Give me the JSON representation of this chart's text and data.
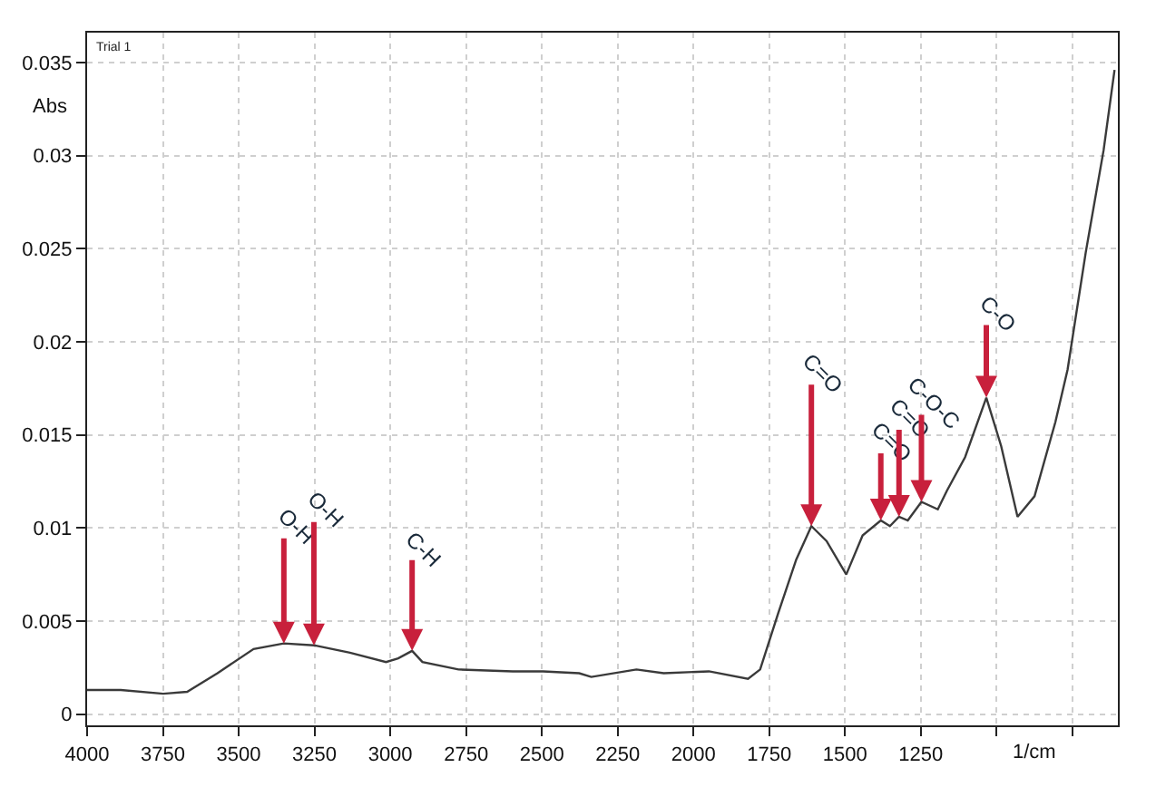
{
  "chart_data": {
    "type": "line",
    "title": "Trial 1",
    "xlabel": "1/cm",
    "ylabel": "Abs",
    "x": [
      4000,
      3889,
      3749,
      3670,
      3570,
      3451,
      3351,
      3252,
      3133,
      3014,
      2974,
      2928,
      2894,
      2775,
      2596,
      2496,
      2377,
      2337,
      2188,
      2098,
      1949,
      1820,
      1780,
      1721,
      1661,
      1611,
      1561,
      1496,
      1442,
      1382,
      1352,
      1322,
      1293,
      1248,
      1194,
      1164,
      1104,
      1034,
      985,
      931,
      875,
      806,
      766,
      706,
      647,
      611
    ],
    "series": [
      {
        "color": "#3a3a3a",
        "values": [
          0.0013,
          0.0013,
          0.0011,
          0.0012,
          0.0022,
          0.0035,
          0.0038,
          0.0037,
          0.0033,
          0.0028,
          0.003,
          0.0034,
          0.0028,
          0.0024,
          0.0023,
          0.0023,
          0.0022,
          0.002,
          0.0024,
          0.0022,
          0.0023,
          0.0019,
          0.0024,
          0.0054,
          0.0083,
          0.0101,
          0.0093,
          0.0075,
          0.0096,
          0.0104,
          0.0101,
          0.0106,
          0.0104,
          0.0114,
          0.011,
          0.012,
          0.0138,
          0.017,
          0.0144,
          0.0106,
          0.0117,
          0.0157,
          0.0185,
          0.0248,
          0.0303,
          0.0346
        ]
      }
    ],
    "xlim": [
      4000,
      600
    ],
    "xticks": [
      4000,
      3750,
      3500,
      3250,
      3000,
      2750,
      2500,
      2250,
      2000,
      1750,
      1500,
      1250,
      {
        "value": 1000,
        "label": null
      },
      {
        "value": 750,
        "label": null
      }
    ],
    "ylim": [
      -0.0006,
      0.0366
    ],
    "yticks": [
      0,
      0.005,
      0.01,
      0.015,
      0.02,
      0.025,
      0.03,
      0.035
    ],
    "grid": true,
    "marker": "none",
    "line_style": "solid",
    "annotations": [
      {
        "text": "O-H",
        "x": 3351,
        "y": 0.0038
      },
      {
        "text": "O-H",
        "x": 3252,
        "y": 0.0037
      },
      {
        "text": "C-H",
        "x": 2928,
        "y": 0.0034
      },
      {
        "text": "C=O",
        "x": 1611,
        "y": 0.0101
      },
      {
        "text": "C=O",
        "x": 1382,
        "y": 0.0104
      },
      {
        "text": "C=O",
        "x": 1322,
        "y": 0.0106
      },
      {
        "text": "C-O-C",
        "x": 1248,
        "y": 0.0114
      },
      {
        "text": "C-O",
        "x": 1034,
        "y": 0.017
      }
    ]
  }
}
